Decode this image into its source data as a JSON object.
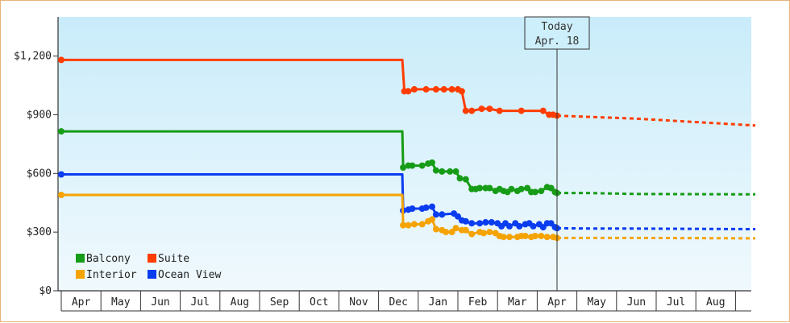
{
  "chart_data": {
    "type": "line",
    "title": "",
    "xlabel": "",
    "ylabel": "",
    "ylim": [
      0,
      1400
    ],
    "y_ticks": [
      {
        "value": 0,
        "label": "$0"
      },
      {
        "value": 300,
        "label": "$300"
      },
      {
        "value": 600,
        "label": "$600"
      },
      {
        "value": 900,
        "label": "$900"
      },
      {
        "value": 1200,
        "label": "$1,200"
      }
    ],
    "x_domain_months": [
      0,
      17.5
    ],
    "month_labels": [
      "Apr",
      "May",
      "Jun",
      "Jul",
      "Aug",
      "Sep",
      "Oct",
      "Nov",
      "Dec",
      "Jan",
      "Feb",
      "Mar",
      "Apr",
      "May",
      "Jun",
      "Jul",
      "Aug"
    ],
    "today": {
      "line1": "Today",
      "line2": "Apr. 18",
      "x": 12.5
    },
    "legend_position": "bottom-left",
    "grid": false,
    "colors": {
      "Balcony": "#169c16",
      "Suite": "#ff3d00",
      "Interior": "#f5a300",
      "Ocean View": "#0a3cf0"
    },
    "legend_order": [
      "Balcony",
      "Suite",
      "Interior",
      "Ocean View"
    ],
    "series": [
      {
        "name": "Suite",
        "points": [
          [
            0,
            1180
          ],
          [
            8.6,
            1180
          ],
          [
            8.65,
            1020
          ],
          [
            8.75,
            1020
          ],
          [
            8.9,
            1030
          ],
          [
            9.2,
            1030
          ],
          [
            9.45,
            1030
          ],
          [
            9.65,
            1030
          ],
          [
            9.85,
            1030
          ],
          [
            10.0,
            1030
          ],
          [
            10.1,
            1020
          ],
          [
            10.2,
            920
          ],
          [
            10.35,
            920
          ],
          [
            10.6,
            930
          ],
          [
            10.8,
            930
          ],
          [
            11.05,
            920
          ],
          [
            11.6,
            920
          ],
          [
            12.15,
            920
          ],
          [
            12.3,
            900
          ],
          [
            12.4,
            900
          ],
          [
            12.5,
            895
          ]
        ],
        "forecast": [
          [
            12.5,
            895
          ],
          [
            14.5,
            880
          ],
          [
            17.5,
            845
          ]
        ]
      },
      {
        "name": "Balcony",
        "points": [
          [
            0,
            815
          ],
          [
            8.6,
            815
          ],
          [
            8.62,
            630
          ],
          [
            8.75,
            640
          ],
          [
            8.85,
            640
          ],
          [
            9.1,
            640
          ],
          [
            9.25,
            650
          ],
          [
            9.35,
            655
          ],
          [
            9.45,
            615
          ],
          [
            9.6,
            610
          ],
          [
            9.8,
            610
          ],
          [
            9.95,
            610
          ],
          [
            10.05,
            575
          ],
          [
            10.2,
            570
          ],
          [
            10.35,
            520
          ],
          [
            10.45,
            520
          ],
          [
            10.55,
            525
          ],
          [
            10.7,
            525
          ],
          [
            10.8,
            525
          ],
          [
            10.95,
            510
          ],
          [
            11.05,
            520
          ],
          [
            11.15,
            510
          ],
          [
            11.25,
            505
          ],
          [
            11.35,
            520
          ],
          [
            11.5,
            510
          ],
          [
            11.6,
            520
          ],
          [
            11.75,
            525
          ],
          [
            11.85,
            505
          ],
          [
            11.95,
            505
          ],
          [
            12.1,
            510
          ],
          [
            12.25,
            530
          ],
          [
            12.35,
            525
          ],
          [
            12.45,
            505
          ],
          [
            12.5,
            500
          ]
        ],
        "forecast": [
          [
            12.5,
            500
          ],
          [
            13.2,
            500
          ],
          [
            14.5,
            495
          ],
          [
            17.5,
            493
          ]
        ]
      },
      {
        "name": "Ocean View",
        "points": [
          [
            0,
            595
          ],
          [
            8.6,
            595
          ],
          [
            8.62,
            410
          ],
          [
            8.75,
            415
          ],
          [
            8.85,
            420
          ],
          [
            9.1,
            420
          ],
          [
            9.2,
            425
          ],
          [
            9.35,
            430
          ],
          [
            9.45,
            390
          ],
          [
            9.6,
            390
          ],
          [
            9.9,
            395
          ],
          [
            10.0,
            380
          ],
          [
            10.1,
            360
          ],
          [
            10.2,
            355
          ],
          [
            10.35,
            345
          ],
          [
            10.55,
            345
          ],
          [
            10.7,
            350
          ],
          [
            10.85,
            350
          ],
          [
            11.0,
            345
          ],
          [
            11.1,
            330
          ],
          [
            11.2,
            345
          ],
          [
            11.3,
            330
          ],
          [
            11.45,
            345
          ],
          [
            11.55,
            330
          ],
          [
            11.7,
            340
          ],
          [
            11.8,
            345
          ],
          [
            11.9,
            330
          ],
          [
            12.05,
            340
          ],
          [
            12.15,
            325
          ],
          [
            12.25,
            345
          ],
          [
            12.35,
            345
          ],
          [
            12.45,
            325
          ],
          [
            12.5,
            320
          ]
        ],
        "forecast": [
          [
            12.5,
            320
          ],
          [
            13.5,
            318
          ],
          [
            14.5,
            318
          ],
          [
            17.5,
            315
          ]
        ]
      },
      {
        "name": "Interior",
        "points": [
          [
            0,
            490
          ],
          [
            8.6,
            490
          ],
          [
            8.62,
            335
          ],
          [
            8.75,
            335
          ],
          [
            8.9,
            340
          ],
          [
            9.1,
            340
          ],
          [
            9.25,
            355
          ],
          [
            9.35,
            365
          ],
          [
            9.45,
            315
          ],
          [
            9.6,
            310
          ],
          [
            9.7,
            300
          ],
          [
            9.85,
            300
          ],
          [
            9.95,
            320
          ],
          [
            10.1,
            310
          ],
          [
            10.2,
            310
          ],
          [
            10.35,
            290
          ],
          [
            10.55,
            300
          ],
          [
            10.65,
            295
          ],
          [
            10.8,
            300
          ],
          [
            10.95,
            295
          ],
          [
            11.05,
            280
          ],
          [
            11.15,
            275
          ],
          [
            11.3,
            275
          ],
          [
            11.5,
            275
          ],
          [
            11.6,
            280
          ],
          [
            11.7,
            280
          ],
          [
            11.85,
            275
          ],
          [
            11.95,
            280
          ],
          [
            12.1,
            280
          ],
          [
            12.25,
            275
          ],
          [
            12.4,
            275
          ],
          [
            12.5,
            270
          ]
        ],
        "forecast": [
          [
            12.5,
            270
          ],
          [
            14.5,
            270
          ],
          [
            17.5,
            268
          ]
        ]
      }
    ]
  }
}
